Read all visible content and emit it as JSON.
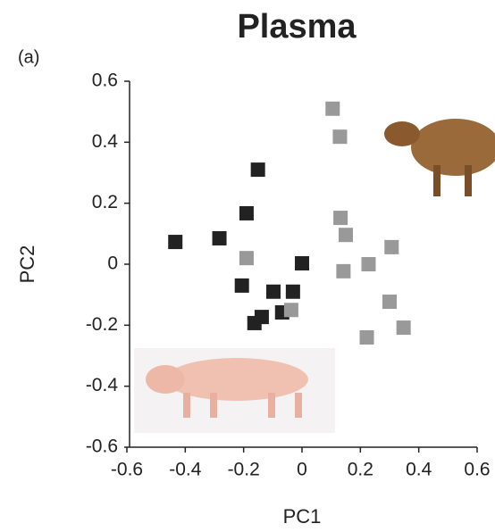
{
  "chart_data": {
    "type": "scatter",
    "title": "Plasma",
    "panel_label": "(a)",
    "x_label": "PC1",
    "y_label": "PC2",
    "xlim": [
      -0.6,
      0.6
    ],
    "ylim": [
      -0.6,
      0.6
    ],
    "xticks": [
      -0.6,
      -0.4,
      -0.2,
      0,
      0.2,
      0.4,
      0.6
    ],
    "yticks": [
      -0.6,
      -0.4,
      -0.2,
      0,
      0.2,
      0.4,
      0.6
    ],
    "marker": "square",
    "series": [
      {
        "color": "#222222",
        "x": [
          -0.434,
          -0.283,
          -0.151,
          -0.19,
          -0.206,
          -0.098,
          -0.031,
          -0.138,
          -0.163,
          -0.068,
          0.0
        ],
        "values": [
          0.073,
          0.085,
          0.31,
          0.167,
          -0.07,
          -0.09,
          -0.09,
          -0.173,
          -0.193,
          -0.158,
          0.003
        ]
      },
      {
        "color": "#999999",
        "x": [
          0.105,
          0.13,
          0.132,
          0.15,
          0.142,
          0.228,
          0.307,
          0.3,
          0.348,
          0.222,
          -0.19,
          -0.037
        ],
        "values": [
          0.51,
          0.418,
          0.152,
          0.096,
          -0.023,
          0.0,
          0.056,
          -0.123,
          -0.208,
          -0.24,
          0.02,
          -0.15
        ]
      }
    ]
  }
}
